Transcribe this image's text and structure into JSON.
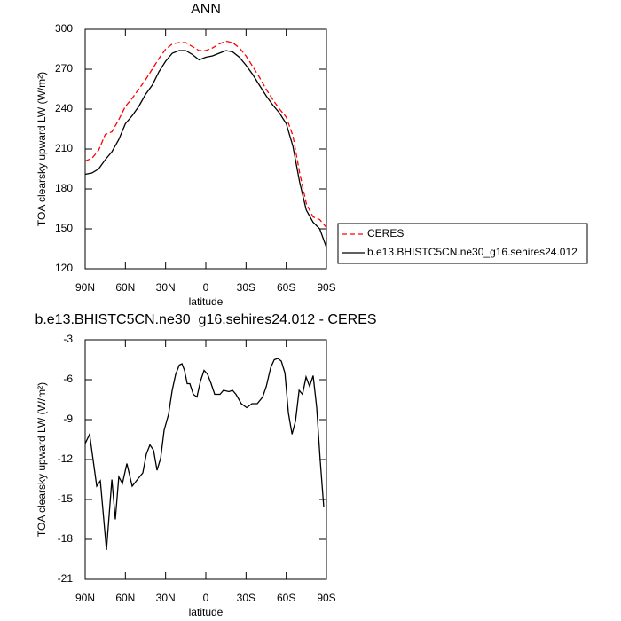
{
  "chart_data": [
    {
      "type": "line",
      "title": "ANN",
      "xlabel": "latitude",
      "ylabel": "TOA clearsky upward LW (W/m²)",
      "x": [
        90,
        85,
        80,
        75,
        70,
        65,
        60,
        55,
        50,
        45,
        40,
        35,
        30,
        25,
        20,
        15,
        10,
        5,
        0,
        -5,
        -10,
        -15,
        -20,
        -25,
        -30,
        -35,
        -40,
        -45,
        -50,
        -55,
        -60,
        -65,
        -70,
        -75,
        -80,
        -85,
        -90
      ],
      "series": [
        {
          "name": "CERES",
          "color": "#ff0000",
          "dash": true,
          "values": [
            201,
            203,
            209,
            221,
            223,
            232,
            242,
            248,
            255,
            262,
            270,
            278,
            285,
            289,
            290,
            290,
            287,
            284,
            284,
            286,
            289,
            291,
            290,
            286,
            280,
            272,
            264,
            255,
            247,
            240,
            234,
            220,
            192,
            169,
            159,
            157,
            151
          ]
        },
        {
          "name": "b.e13.BHISTC5CN.ne30_g16.sehires24.012",
          "color": "#000000",
          "dash": false,
          "values": [
            191,
            192,
            195,
            202,
            208,
            217,
            229,
            235,
            242,
            251,
            258,
            268,
            276,
            282,
            284,
            284,
            281,
            277,
            279,
            280,
            282,
            284,
            283,
            279,
            273,
            266,
            258,
            250,
            243,
            237,
            229,
            212,
            185,
            164,
            155,
            150,
            136
          ]
        }
      ],
      "xlim": [
        90,
        -90
      ],
      "xticks": [
        {
          "value": 90,
          "label": "90N"
        },
        {
          "value": 60,
          "label": "60N"
        },
        {
          "value": 30,
          "label": "30N"
        },
        0,
        {
          "value": -30,
          "label": "30S"
        },
        {
          "value": -60,
          "label": "60S"
        },
        {
          "value": -90,
          "label": "90S"
        }
      ],
      "ylim": [
        120,
        300
      ],
      "yticks": [
        120,
        150,
        180,
        210,
        240,
        270,
        300
      ],
      "legend": "right"
    },
    {
      "type": "line",
      "title": "b.e13.BHISTC5CN.ne30_g16.sehires24.012 - CERES",
      "xlabel": "latitude",
      "ylabel": "TOA clearsky upward LW (W/m²)",
      "x": [
        90,
        86.7,
        84.0,
        81.4,
        78.7,
        74.1,
        70.1,
        67.5,
        64.9,
        62.2,
        58.9,
        54.9,
        51.0,
        47.0,
        44.4,
        41.7,
        39.0,
        36.4,
        33.7,
        31.1,
        27.8,
        25.1,
        22.5,
        19.8,
        17.8,
        15.9,
        13.9,
        11.9,
        9.3,
        6.6,
        4.0,
        1.3,
        -1.3,
        -4.0,
        -6.6,
        -10.6,
        -13.2,
        -17.2,
        -19.9,
        -22.5,
        -26.5,
        -30.5,
        -34.5,
        -38.4,
        -42.4,
        -45.1,
        -48.4,
        -51.0,
        -53.7,
        -56.3,
        -59.0,
        -61.6,
        -64.3,
        -66.9,
        -69.6,
        -72.1,
        -74.8,
        -77.4,
        -80.1,
        -82.7,
        -85.4,
        -88.0
      ],
      "values": [
        -10.8,
        -10.1,
        -12.1,
        -14.0,
        -13.6,
        -18.8,
        -13.5,
        -16.5,
        -13.3,
        -13.8,
        -12.3,
        -14.0,
        -13.5,
        -13.0,
        -11.6,
        -10.9,
        -11.3,
        -12.8,
        -11.9,
        -9.8,
        -8.6,
        -6.8,
        -5.6,
        -4.9,
        -4.8,
        -5.3,
        -6.3,
        -6.3,
        -7.1,
        -7.3,
        -6.1,
        -5.3,
        -5.6,
        -6.3,
        -7.1,
        -7.1,
        -6.8,
        -6.9,
        -6.8,
        -7.1,
        -7.8,
        -8.1,
        -7.8,
        -7.8,
        -7.3,
        -6.5,
        -5.1,
        -4.5,
        -4.4,
        -4.6,
        -5.5,
        -8.5,
        -10.1,
        -9.1,
        -6.8,
        -7.1,
        -5.8,
        -6.5,
        -5.7,
        -8.1,
        -12.1,
        -15.6
      ],
      "color": "#000000",
      "xlim": [
        90,
        -90
      ],
      "xticks": [
        {
          "value": 90,
          "label": "90N"
        },
        {
          "value": 60,
          "label": "60N"
        },
        {
          "value": 30,
          "label": "30N"
        },
        0,
        {
          "value": -30,
          "label": "30S"
        },
        {
          "value": -60,
          "label": "60S"
        },
        {
          "value": -90,
          "label": "90S"
        }
      ],
      "ylim": [
        -21,
        -3
      ],
      "yticks": [
        -21,
        -18,
        -15,
        -12,
        -9,
        -6,
        -3
      ]
    }
  ]
}
